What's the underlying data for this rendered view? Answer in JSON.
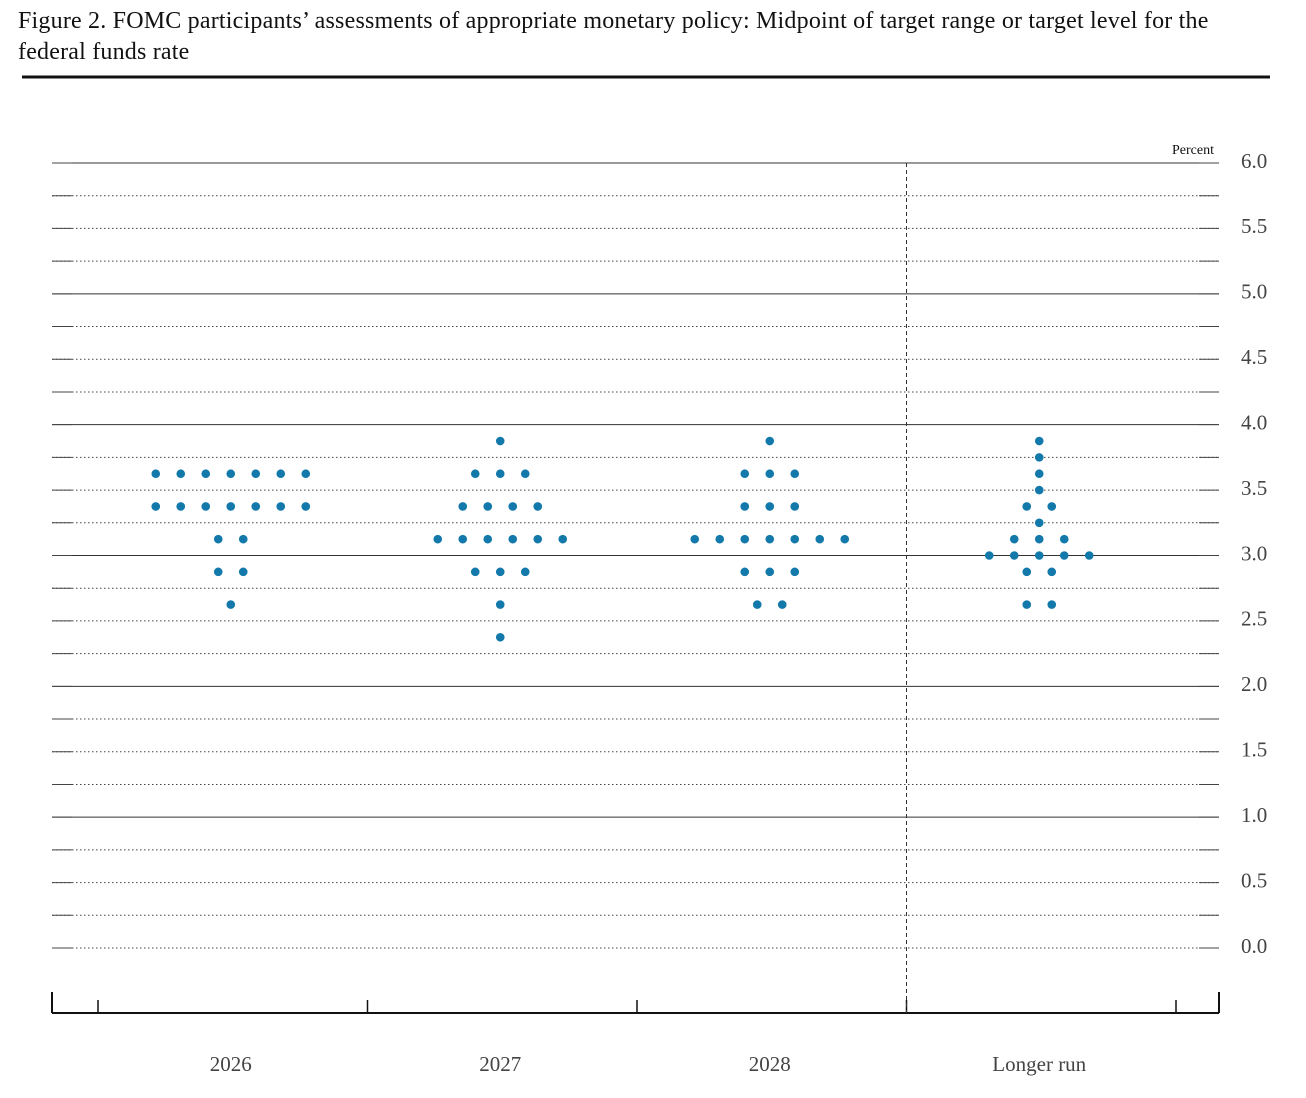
{
  "chart_data": {
    "type": "dot",
    "title": "Figure 2. FOMC participants’ assessments of appropriate monetary policy: Midpoint of target range or target level for the federal funds rate",
    "y_unit_label": "Percent",
    "categories": [
      "2026",
      "2027",
      "2028",
      "Longer run"
    ],
    "values": [
      [
        3.625,
        3.625,
        3.625,
        3.625,
        3.625,
        3.625,
        3.625,
        3.375,
        3.375,
        3.375,
        3.375,
        3.375,
        3.375,
        3.375,
        3.125,
        3.125,
        2.875,
        2.875,
        2.625
      ],
      [
        3.875,
        3.625,
        3.625,
        3.625,
        3.375,
        3.375,
        3.375,
        3.375,
        3.125,
        3.125,
        3.125,
        3.125,
        3.125,
        3.125,
        2.875,
        2.875,
        2.875,
        2.625,
        2.375
      ],
      [
        3.875,
        3.625,
        3.625,
        3.625,
        3.375,
        3.375,
        3.375,
        3.125,
        3.125,
        3.125,
        3.125,
        3.125,
        3.125,
        3.125,
        2.875,
        2.875,
        2.875,
        2.625,
        2.625
      ],
      [
        3.875,
        3.75,
        3.625,
        3.5,
        3.375,
        3.375,
        3.25,
        3.125,
        3.125,
        3.125,
        3.0,
        3.0,
        3.0,
        3.0,
        3.0,
        2.875,
        2.875,
        2.625,
        2.625
      ]
    ],
    "color": "#1379aa",
    "ylim": [
      -0.5,
      6.0
    ],
    "yticks": [
      {
        "value": 0,
        "label": "0.0"
      },
      0.5,
      {
        "value": 1,
        "label": "1.0"
      },
      1.5,
      {
        "value": 2,
        "label": "2.0"
      },
      2.5,
      {
        "value": 3,
        "label": "3.0"
      },
      3.5,
      {
        "value": 4,
        "label": "4.0"
      },
      4.5,
      {
        "value": 5,
        "label": "5.0"
      },
      5.5,
      {
        "value": 6,
        "label": "6.0"
      }
    ],
    "minor_yticks": [
      0.25,
      0.75,
      1.25,
      1.75,
      2.25,
      2.75,
      3.25,
      3.75,
      4.25,
      4.75,
      5.25,
      5.75
    ],
    "grid": true,
    "separator_before": "Longer run"
  }
}
